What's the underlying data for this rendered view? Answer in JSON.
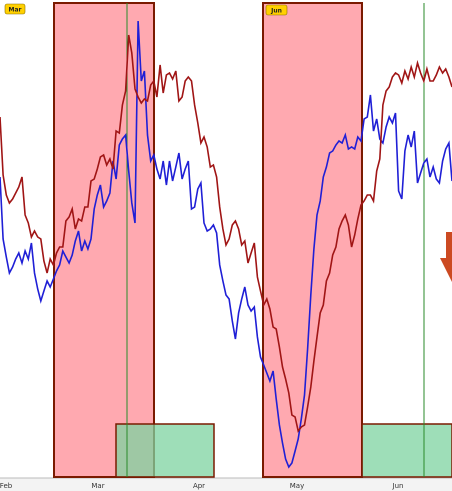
{
  "chart_data": {
    "type": "line",
    "x_labels": [
      "Feb",
      "Mar",
      "Apr",
      "May",
      "Jun"
    ],
    "series": [
      {
        "color": "#1f1fd6",
        "values": [
          300,
          238,
          220,
          204,
          210,
          218,
          224,
          214,
          226,
          218,
          234,
          204,
          188,
          176,
          186,
          196,
          190,
          198,
          206,
          212,
          226,
          220,
          214,
          222,
          236,
          246,
          226,
          236,
          228,
          238,
          268,
          282,
          292,
          270,
          276,
          284,
          316,
          298,
          332,
          338,
          342,
          306,
          274,
          254,
          456,
          396,
          406,
          342,
          316,
          322,
          308,
          298,
          316,
          292,
          316,
          296,
          310,
          324,
          298,
          308,
          316,
          268,
          270,
          288,
          294,
          254,
          246,
          248,
          252,
          244,
          212,
          196,
          182,
          178,
          156,
          138,
          164,
          178,
          190,
          172,
          166,
          170,
          140,
          120,
          112,
          104,
          96,
          106,
          78,
          52,
          34,
          18,
          10,
          14,
          26,
          38,
          58,
          82,
          128,
          182,
          228,
          262,
          276,
          300,
          310,
          324,
          326,
          332,
          336,
          334,
          342,
          328,
          330,
          328,
          340,
          336,
          358,
          360,
          382,
          346,
          358,
          338,
          334,
          350,
          360,
          354,
          364,
          286,
          278,
          326,
          342,
          330,
          346,
          294,
          304,
          314,
          318,
          300,
          310,
          298,
          294,
          316,
          328,
          334,
          296
        ]
      },
      {
        "color": "#a01515",
        "values": [
          360,
          302,
          282,
          274,
          278,
          284,
          290,
          300,
          262,
          254,
          240,
          246,
          240,
          238,
          216,
          204,
          218,
          212,
          224,
          230,
          230,
          256,
          260,
          268,
          248,
          258,
          256,
          270,
          270,
          296,
          298,
          308,
          320,
          322,
          312,
          318,
          308,
          346,
          344,
          372,
          386,
          442,
          424,
          388,
          380,
          374,
          378,
          376,
          392,
          396,
          380,
          412,
          384,
          402,
          404,
          398,
          406,
          376,
          380,
          396,
          400,
          396,
          372,
          354,
          334,
          340,
          330,
          310,
          312,
          300,
          270,
          248,
          232,
          238,
          252,
          256,
          248,
          232,
          236,
          214,
          224,
          234,
          200,
          186,
          172,
          178,
          168,
          150,
          148,
          130,
          110,
          98,
          84,
          62,
          60,
          46,
          50,
          52,
          70,
          90,
          116,
          140,
          164,
          172,
          196,
          204,
          222,
          230,
          248,
          256,
          262,
          252,
          230,
          242,
          258,
          272,
          276,
          282,
          282,
          276,
          306,
          318,
          372,
          386,
          390,
          400,
          404,
          402,
          394,
          406,
          398,
          410,
          400,
          414,
          404,
          396,
          408,
          396,
          396,
          402,
          410,
          404,
          408,
          400,
          390
        ]
      }
    ]
  },
  "overlays": {
    "zone_fill": "#ff9aa2",
    "zone_border": "#7a1a00",
    "support_fill": "#7ed3a0",
    "vline_color": "#2a8a2a",
    "arrow_color": "#cc4a22",
    "badge_fill": "#ffd000"
  },
  "badges": {
    "left": "Mar",
    "right": "Jun"
  }
}
